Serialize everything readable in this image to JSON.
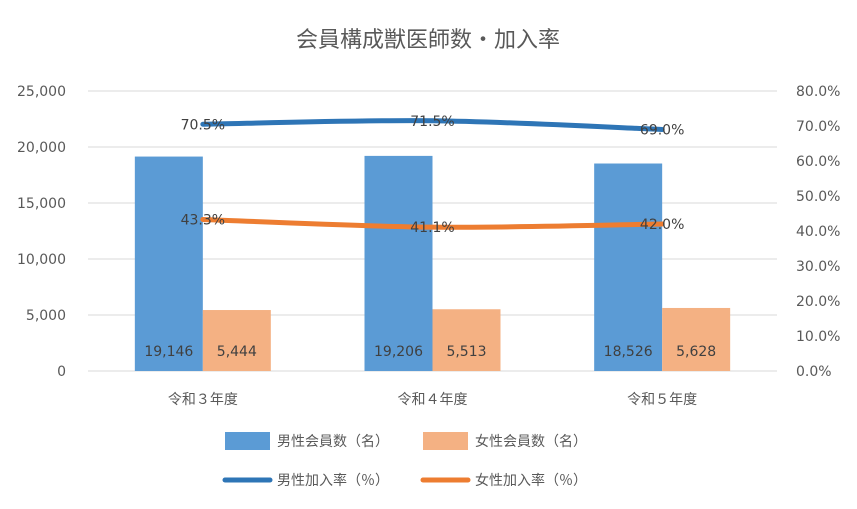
{
  "chart_data": {
    "type": "bar",
    "title": "会員構成獣医師数・加入率",
    "categories": [
      "令和３年度",
      "令和４年度",
      "令和５年度"
    ],
    "y_left": {
      "min": 0,
      "max": 25000,
      "ticks": [
        "0",
        "5,000",
        "10,000",
        "15,000",
        "20,000",
        "25,000"
      ]
    },
    "y_right": {
      "min": 0,
      "max": 80,
      "ticks": [
        "0.0%",
        "10.0%",
        "20.0%",
        "30.0%",
        "40.0%",
        "50.0%",
        "60.0%",
        "70.0%",
        "80.0%"
      ]
    },
    "bar_series": [
      {
        "name": "男性会員数（名）",
        "values": [
          19146,
          19206,
          18526
        ],
        "labels": [
          "19,146",
          "19,206",
          "18,526"
        ],
        "color": "#5b9bd5"
      },
      {
        "name": "女性会員数（名）",
        "values": [
          5444,
          5513,
          5628
        ],
        "labels": [
          "5,444",
          "5,513",
          "5,628"
        ],
        "color": "#f4b183"
      }
    ],
    "line_series": [
      {
        "name": "男性加入率（％）",
        "values": [
          70.5,
          71.5,
          69.0
        ],
        "labels": [
          "70.5%",
          "71.5%",
          "69.0%"
        ],
        "color": "#2e75b6"
      },
      {
        "name": "女性加入率（％）",
        "values": [
          43.3,
          41.1,
          42.0
        ],
        "labels": [
          "43.3%",
          "41.1%",
          "42.0%"
        ],
        "color": "#ed7d31"
      }
    ],
    "grid": true,
    "legend_position": "bottom"
  }
}
